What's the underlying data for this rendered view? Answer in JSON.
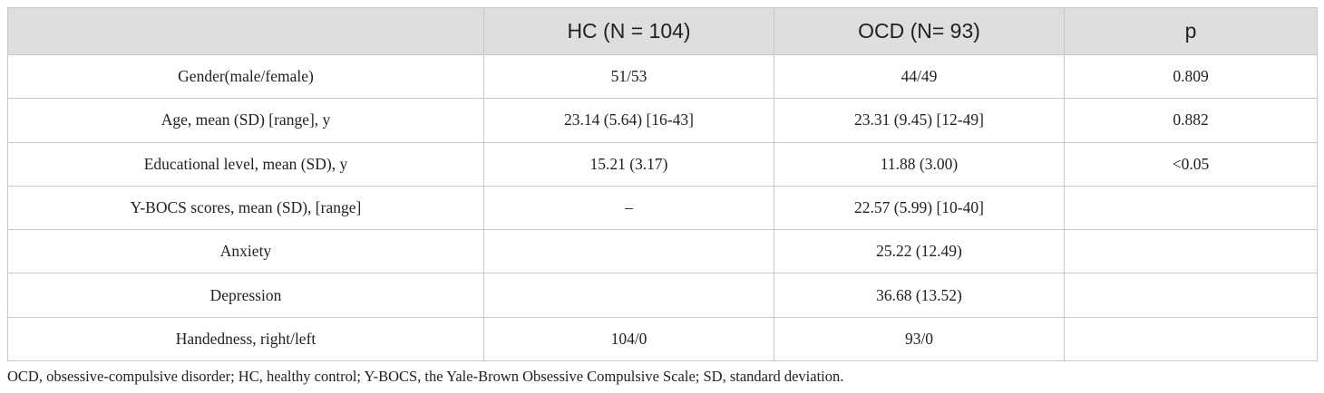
{
  "table": {
    "header": [
      "HC (N = 104)",
      "OCD (N= 93)",
      "p"
    ],
    "rows": [
      {
        "label": "Gender(male/female)",
        "hc": "51/53",
        "ocd": "44/49",
        "p": "0.809"
      },
      {
        "label": "Age, mean (SD) [range], y",
        "hc": "23.14 (5.64) [16-43]",
        "ocd": "23.31 (9.45) [12-49]",
        "p": "0.882"
      },
      {
        "label": "Educational level, mean (SD), y",
        "hc": "15.21 (3.17)",
        "ocd": "11.88 (3.00)",
        "p": "<0.05"
      },
      {
        "label": "Y-BOCS scores, mean (SD), [range]",
        "hc": "–",
        "ocd": "22.57 (5.99) [10-40]"
      },
      {
        "label": "Anxiety",
        "ocd": "25.22 (12.49)"
      },
      {
        "label": "Depression",
        "ocd": "36.68 (13.52)"
      },
      {
        "label": "Handedness, right/left",
        "hc": "104/0",
        "ocd": "93/0"
      }
    ],
    "footnote": "OCD, obsessive-compulsive disorder; HC, healthy control; Y-BOCS, the Yale-Brown Obsessive Compulsive Scale; SD, standard deviation."
  }
}
